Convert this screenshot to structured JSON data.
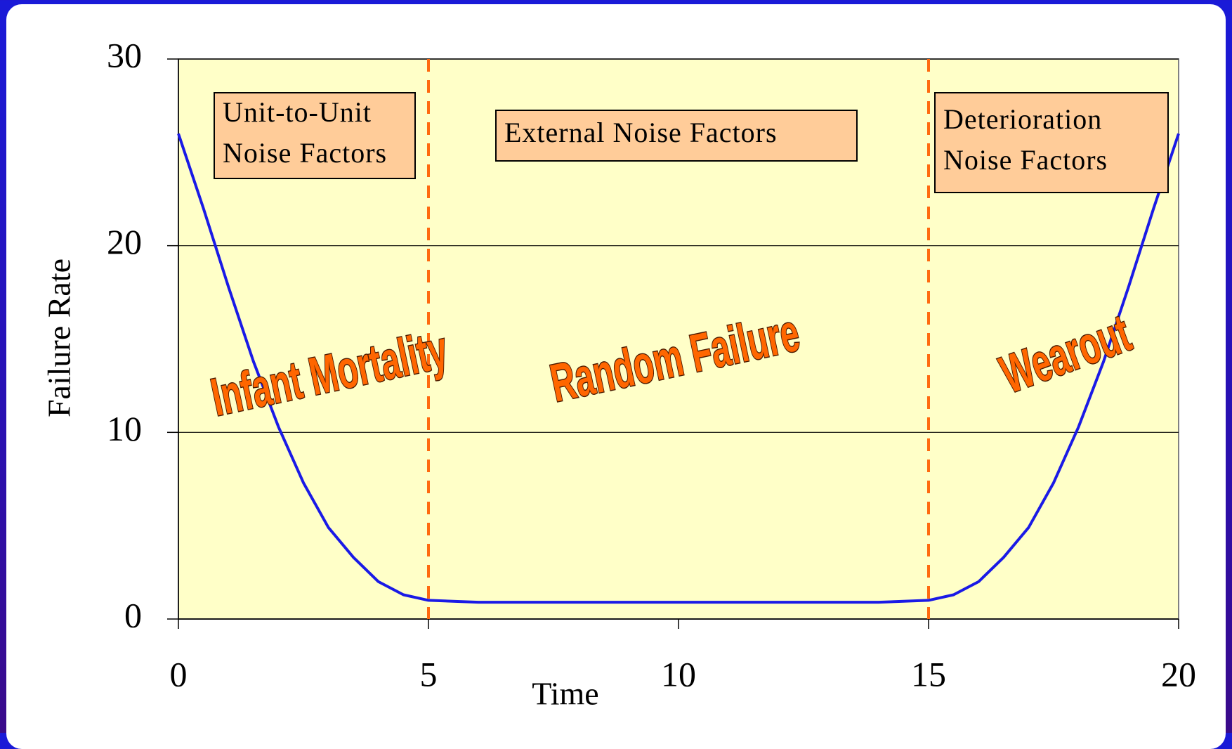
{
  "chart_data": {
    "type": "line",
    "x": [
      0,
      0.5,
      1,
      1.5,
      2,
      2.5,
      3,
      3.5,
      4,
      4.5,
      5,
      6,
      7,
      8,
      9,
      10,
      11,
      12,
      13,
      14,
      15,
      15.5,
      16,
      16.5,
      17,
      17.5,
      18,
      18.5,
      19,
      19.5,
      20
    ],
    "values": [
      26,
      22,
      17.8,
      13.8,
      10.3,
      7.3,
      4.9,
      3.3,
      2.0,
      1.3,
      1.0,
      0.9,
      0.9,
      0.9,
      0.9,
      0.9,
      0.9,
      0.9,
      0.9,
      0.9,
      1.0,
      1.3,
      2.0,
      3.3,
      4.9,
      7.3,
      10.3,
      13.8,
      17.8,
      22,
      26
    ],
    "color": "#1a1ae6",
    "plot_background": "#ffffc8",
    "xlabel": "Time",
    "ylabel": "Failure Rate",
    "xlim": [
      0,
      20
    ],
    "ylim": [
      0,
      30
    ],
    "xticks": [
      0,
      5,
      10,
      15,
      20
    ],
    "yticks": [
      0,
      10,
      20,
      30
    ],
    "grid": true,
    "vlines": [
      5,
      15
    ],
    "vline_color": "#ff6a10",
    "boxes": [
      {
        "lines": [
          "Unit-to-Unit",
          "Noise Factors"
        ],
        "color": "#ffcc99"
      },
      {
        "lines": [
          "External Noise Factors"
        ],
        "color": "#ffcc99"
      },
      {
        "lines": [
          "Deterioration",
          "Noise Factors"
        ],
        "color": "#ffcc99"
      }
    ],
    "labels": [
      "Infant Mortality",
      "Random Failure",
      "Wearout"
    ]
  }
}
